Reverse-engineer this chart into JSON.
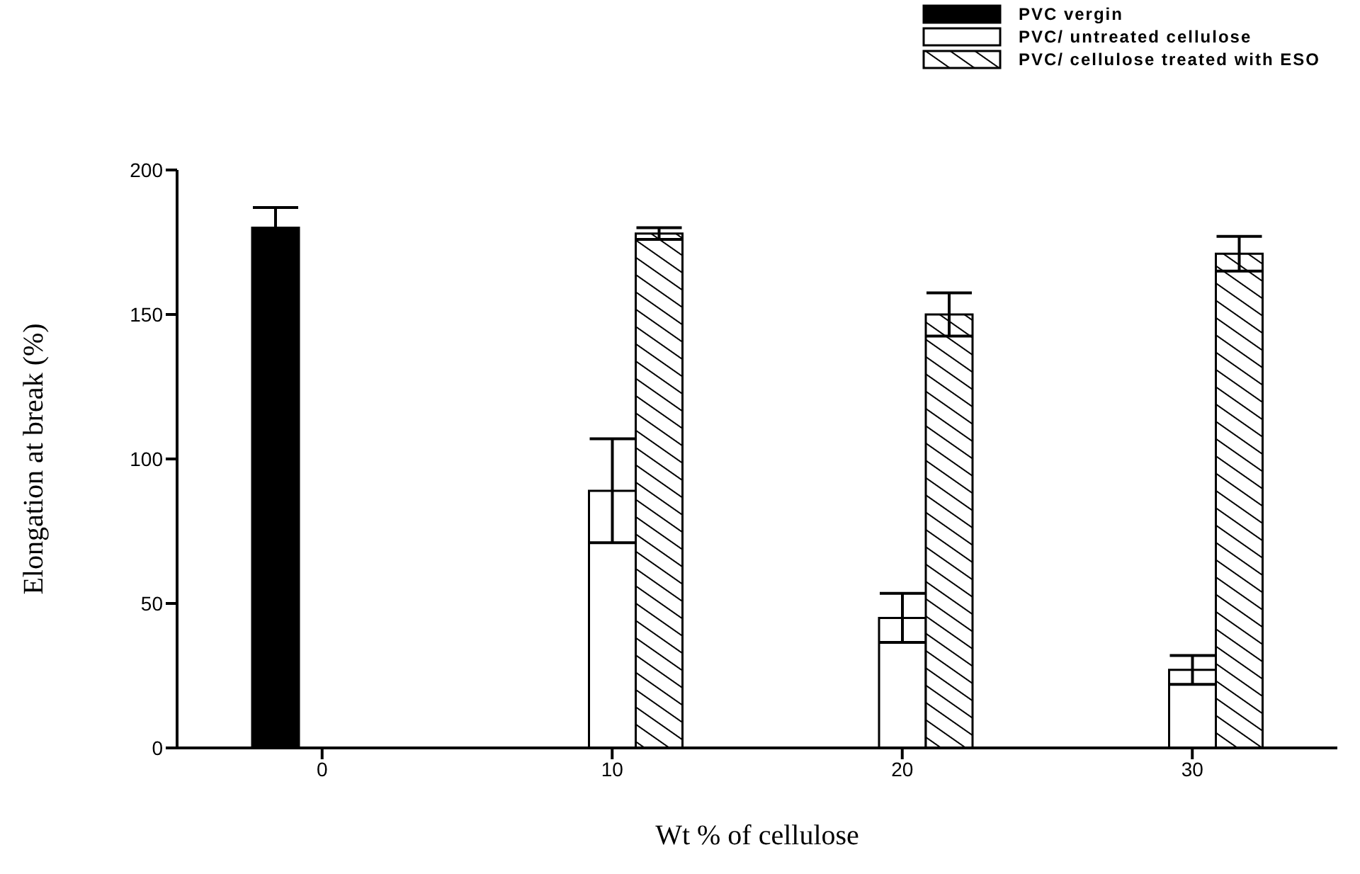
{
  "chart_data": {
    "type": "bar",
    "xlabel": "Wt % of cellulose",
    "ylabel": "Elongation at break (%)",
    "categories": [
      "0",
      "10",
      "20",
      "30"
    ],
    "ylim": [
      0,
      200
    ],
    "yticks": [
      0,
      50,
      100,
      150,
      200
    ],
    "grid": false,
    "legend": "top right",
    "series": [
      {
        "name": "PVC vergin",
        "color": "#000000",
        "values": [
          180,
          null,
          null,
          null
        ],
        "errors": [
          7,
          null,
          null,
          null
        ]
      },
      {
        "name": "PVC/ untreated cellulose",
        "color": "#ffffff",
        "values": [
          null,
          89,
          45,
          27
        ],
        "errors": [
          null,
          18,
          8.5,
          5
        ]
      },
      {
        "name": "PVC/ cellulose treated with ESO",
        "color": "#000000",
        "values": [
          null,
          178,
          150,
          171
        ],
        "errors": [
          null,
          2,
          7.5,
          6
        ]
      }
    ]
  }
}
